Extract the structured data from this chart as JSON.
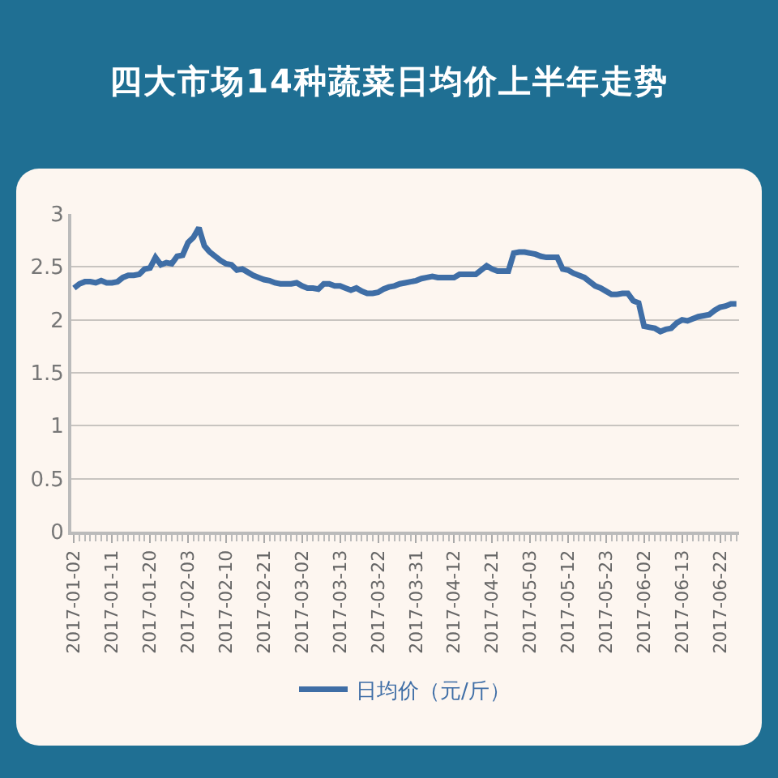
{
  "chart_data": {
    "type": "line",
    "title": "四大市场14种蔬菜日均价上半年走势",
    "categories": [
      "2017-01-02",
      null,
      null,
      null,
      null,
      null,
      null,
      "2017-01-11",
      null,
      null,
      null,
      null,
      null,
      null,
      "2017-01-20",
      null,
      null,
      null,
      null,
      null,
      null,
      "2017-02-03",
      null,
      null,
      null,
      null,
      null,
      null,
      "2017-02-10",
      null,
      null,
      null,
      null,
      null,
      null,
      "2017-02-21",
      null,
      null,
      null,
      null,
      null,
      null,
      "2017-03-02",
      null,
      null,
      null,
      null,
      null,
      null,
      "2017-03-13",
      null,
      null,
      null,
      null,
      null,
      null,
      "2017-03-22",
      null,
      null,
      null,
      null,
      null,
      null,
      "2017-03-31",
      null,
      null,
      null,
      null,
      null,
      null,
      "2017-04-12",
      null,
      null,
      null,
      null,
      null,
      null,
      "2017-04-21",
      null,
      null,
      null,
      null,
      null,
      null,
      "2017-05-03",
      null,
      null,
      null,
      null,
      null,
      null,
      "2017-05-12",
      null,
      null,
      null,
      null,
      null,
      null,
      "2017-05-23",
      null,
      null,
      null,
      null,
      null,
      null,
      "2017-06-02",
      null,
      null,
      null,
      null,
      null,
      null,
      "2017-06-13",
      null,
      null,
      null,
      null,
      null,
      null,
      "2017-06-22",
      null,
      null,
      null
    ],
    "series": [
      {
        "name": "日均价（元/斤）",
        "color": "#3f6ea6",
        "values": [
          2.3,
          2.34,
          2.36,
          2.36,
          2.35,
          2.37,
          2.35,
          2.35,
          2.36,
          2.4,
          2.42,
          2.42,
          2.43,
          2.48,
          2.49,
          2.59,
          2.52,
          2.54,
          2.53,
          2.6,
          2.61,
          2.73,
          2.78,
          2.87,
          2.7,
          2.64,
          2.6,
          2.56,
          2.53,
          2.52,
          2.47,
          2.48,
          2.45,
          2.42,
          2.4,
          2.38,
          2.37,
          2.35,
          2.34,
          2.34,
          2.34,
          2.35,
          2.32,
          2.3,
          2.3,
          2.29,
          2.34,
          2.34,
          2.32,
          2.32,
          2.3,
          2.28,
          2.3,
          2.27,
          2.25,
          2.25,
          2.26,
          2.29,
          2.31,
          2.32,
          2.34,
          2.35,
          2.36,
          2.37,
          2.39,
          2.4,
          2.41,
          2.4,
          2.4,
          2.4,
          2.4,
          2.43,
          2.43,
          2.43,
          2.43,
          2.47,
          2.51,
          2.48,
          2.46,
          2.46,
          2.46,
          2.63,
          2.64,
          2.64,
          2.63,
          2.62,
          2.6,
          2.59,
          2.59,
          2.59,
          2.48,
          2.47,
          2.44,
          2.42,
          2.4,
          2.36,
          2.32,
          2.3,
          2.27,
          2.24,
          2.24,
          2.25,
          2.25,
          2.18,
          2.16,
          1.94,
          1.93,
          1.92,
          1.89,
          1.91,
          1.92,
          1.97,
          2.0,
          1.99,
          2.01,
          2.03,
          2.04,
          2.05,
          2.09,
          2.12,
          2.13,
          2.15,
          2.15
        ]
      }
    ],
    "ylim": [
      0,
      3
    ],
    "yticks": [
      0,
      0.5,
      1,
      1.5,
      2,
      2.5,
      3
    ],
    "grid": "y",
    "legend": "bottom",
    "marker": "none",
    "line_style": "solid"
  }
}
